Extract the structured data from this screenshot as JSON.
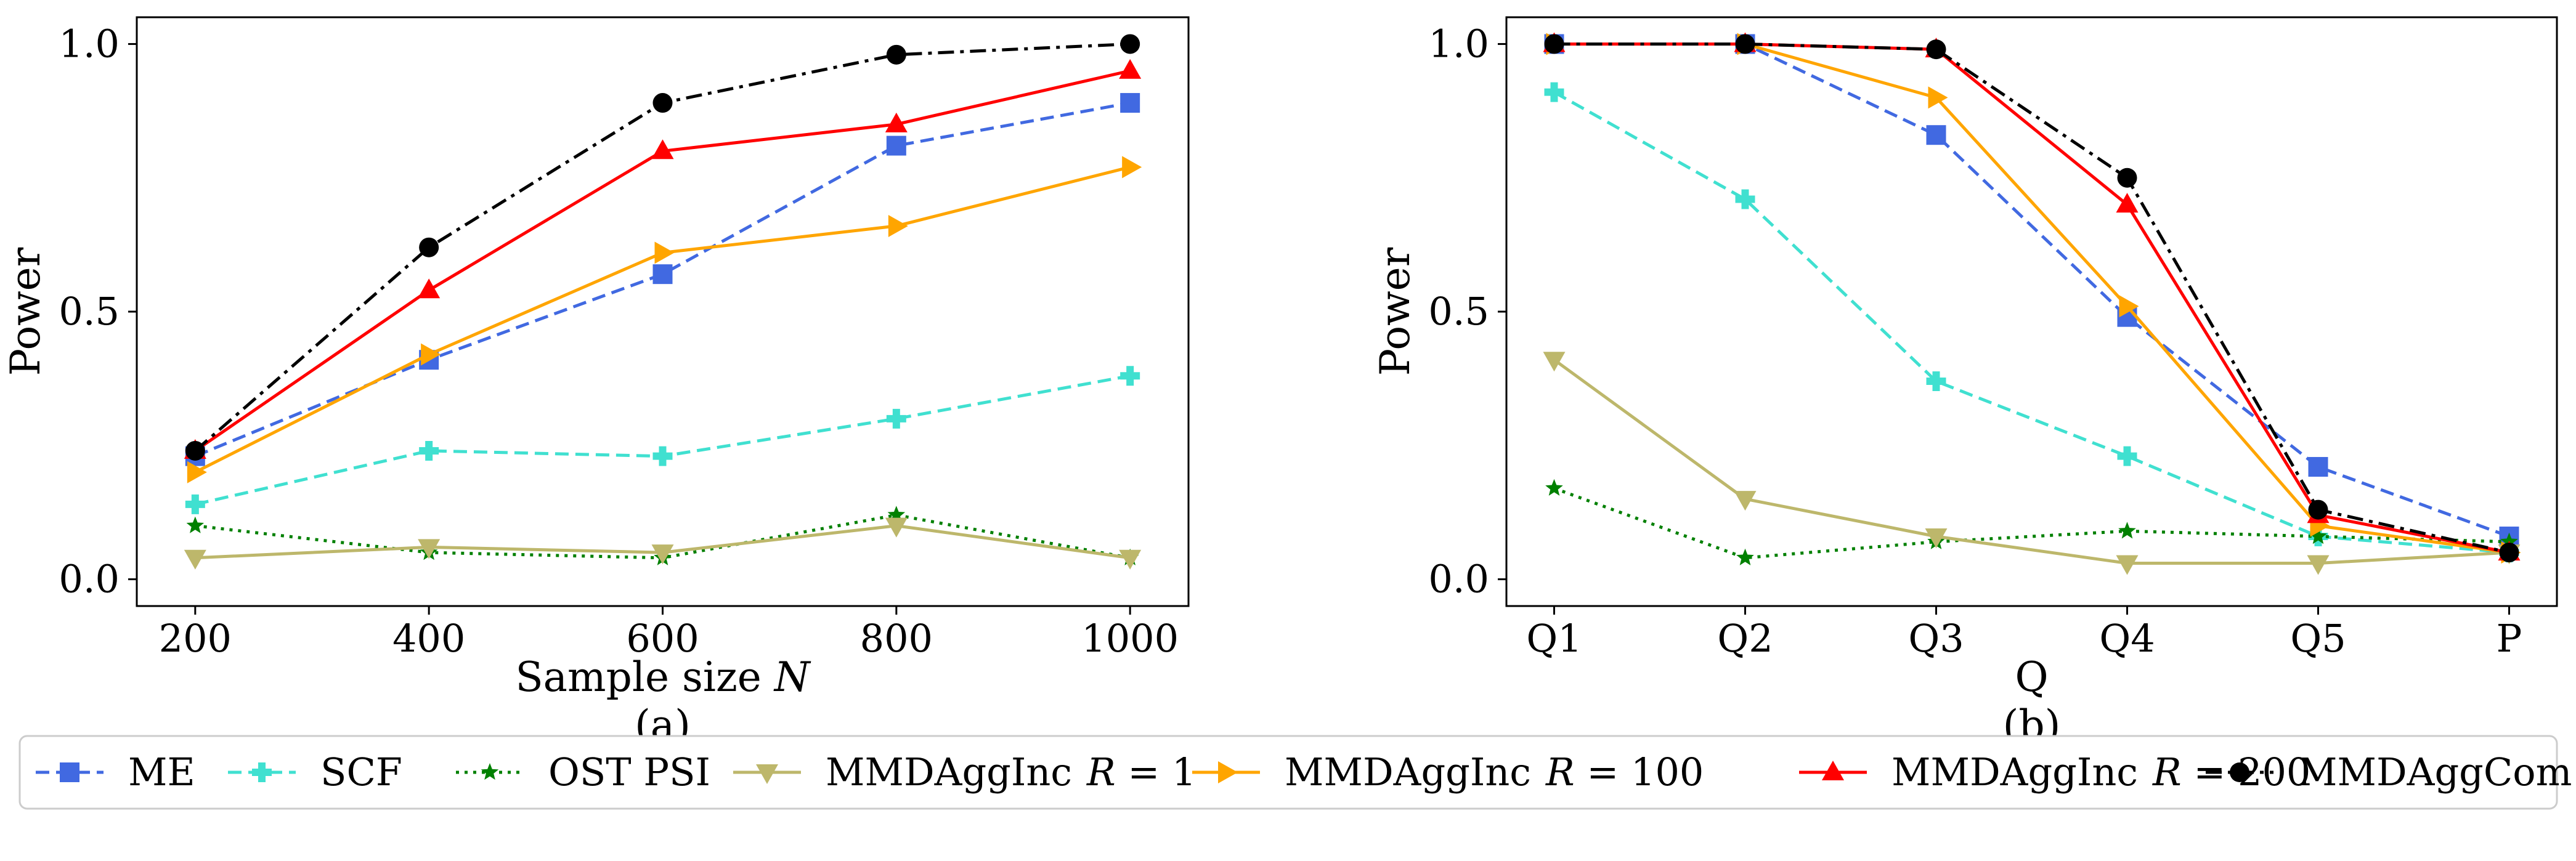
{
  "chart_data": [
    {
      "type": "line",
      "panel_label": "(a)",
      "xlabel": "Sample size N",
      "ylabel": "Power",
      "x": [
        200,
        400,
        600,
        800,
        1000
      ],
      "xtick_labels": [
        "200",
        "400",
        "600",
        "800",
        "1000"
      ],
      "xlim": [
        150,
        1050
      ],
      "ylim": [
        -0.05,
        1.05
      ],
      "yticks": [
        0.0,
        0.5,
        1.0
      ],
      "ytick_labels": [
        "0.0",
        "0.5",
        "1.0"
      ],
      "series": [
        {
          "name": "ME",
          "values": [
            0.23,
            0.41,
            0.57,
            0.81,
            0.89
          ]
        },
        {
          "name": "SCF",
          "values": [
            0.14,
            0.24,
            0.23,
            0.3,
            0.38
          ]
        },
        {
          "name": "OST PSI",
          "values": [
            0.1,
            0.05,
            0.04,
            0.12,
            0.04
          ]
        },
        {
          "name": "MMDAggInc R = 1",
          "values": [
            0.04,
            0.06,
            0.05,
            0.1,
            0.04
          ]
        },
        {
          "name": "MMDAggInc R = 100",
          "values": [
            0.2,
            0.42,
            0.61,
            0.66,
            0.77
          ]
        },
        {
          "name": "MMDAggInc R = 200",
          "values": [
            0.24,
            0.54,
            0.8,
            0.85,
            0.95
          ]
        },
        {
          "name": "MMDAggCom",
          "values": [
            0.24,
            0.62,
            0.89,
            0.98,
            1.0
          ]
        }
      ]
    },
    {
      "type": "line",
      "panel_label": "(b)",
      "xlabel": "Q",
      "ylabel": "Power",
      "categories": [
        "Q1",
        "Q2",
        "Q3",
        "Q4",
        "Q5",
        "P"
      ],
      "ylim": [
        -0.05,
        1.05
      ],
      "yticks": [
        0.0,
        0.5,
        1.0
      ],
      "ytick_labels": [
        "0.0",
        "0.5",
        "1.0"
      ],
      "series": [
        {
          "name": "ME",
          "values": [
            1.0,
            1.0,
            0.83,
            0.49,
            0.21,
            0.08
          ]
        },
        {
          "name": "SCF",
          "values": [
            0.91,
            0.71,
            0.37,
            0.23,
            0.08,
            0.05
          ]
        },
        {
          "name": "OST PSI",
          "values": [
            0.17,
            0.04,
            0.07,
            0.09,
            0.08,
            0.07
          ]
        },
        {
          "name": "MMDAggInc R = 1",
          "values": [
            0.41,
            0.15,
            0.08,
            0.03,
            0.03,
            0.05
          ]
        },
        {
          "name": "MMDAggInc R = 100",
          "values": [
            1.0,
            1.0,
            0.9,
            0.51,
            0.1,
            0.05
          ]
        },
        {
          "name": "MMDAggInc R = 200",
          "values": [
            1.0,
            1.0,
            0.99,
            0.7,
            0.12,
            0.05
          ]
        },
        {
          "name": "MMDAggCom",
          "values": [
            1.0,
            1.0,
            0.99,
            0.75,
            0.13,
            0.05
          ]
        }
      ]
    }
  ],
  "legend": {
    "placement": "bottom",
    "items": [
      {
        "name": "ME",
        "label": "ME",
        "color": "#4169E1",
        "dash": "dashed",
        "marker": "square"
      },
      {
        "name": "SCF",
        "label": "SCF",
        "color": "#40E0D0",
        "dash": "dashed",
        "marker": "plus"
      },
      {
        "name": "OST PSI",
        "label": "OST PSI",
        "color": "#008000",
        "dash": "dotted",
        "marker": "star"
      },
      {
        "name": "MMDAggInc R = 1",
        "label": "MMDAggInc",
        "var": "R",
        "eq": " = 1",
        "color": "#BDB76B",
        "dash": "solid",
        "marker": "triangle-down"
      },
      {
        "name": "MMDAggInc R = 100",
        "label": "MMDAggInc",
        "var": "R",
        "eq": " = 100",
        "color": "#FFA500",
        "dash": "solid",
        "marker": "triangle-right"
      },
      {
        "name": "MMDAggInc R = 200",
        "label": "MMDAggInc",
        "var": "R",
        "eq": " = 200",
        "color": "#FF0000",
        "dash": "solid",
        "marker": "triangle-up"
      },
      {
        "name": "MMDAggCom",
        "label": "MMDAggCom",
        "color": "#000000",
        "dash": "dashdot",
        "marker": "circle"
      }
    ]
  }
}
